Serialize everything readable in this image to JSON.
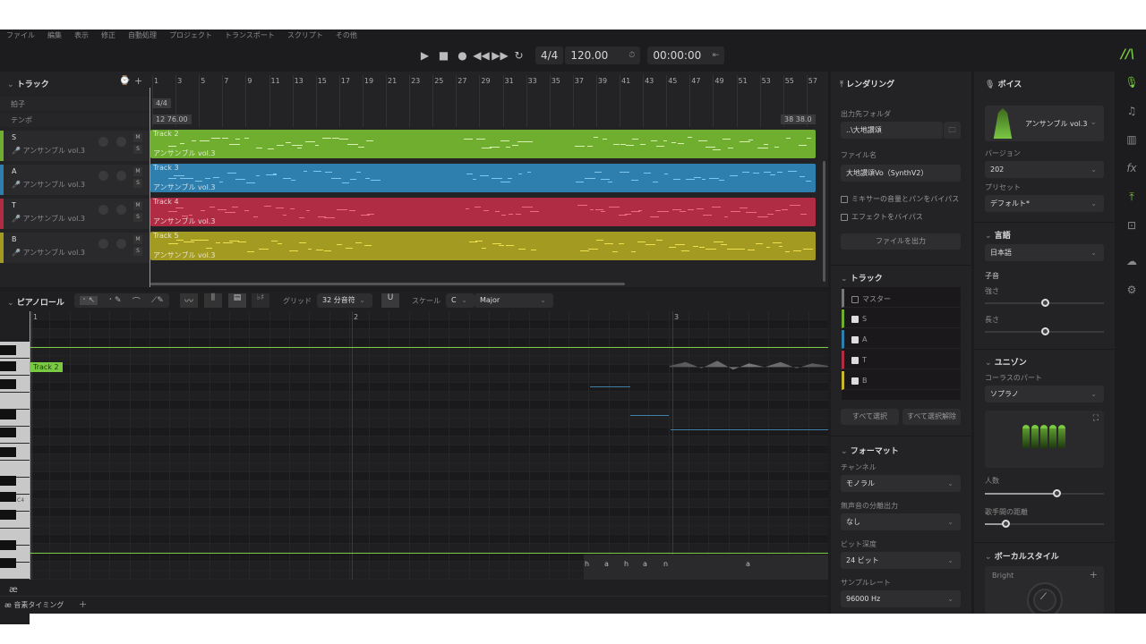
{
  "menu": [
    "ファイル",
    "編集",
    "表示",
    "修正",
    "自動処理",
    "プロジェクト",
    "トランスポート",
    "スクリプト",
    "その他"
  ],
  "transport": {
    "time_signature": "4/4",
    "tempo": "120.00",
    "time": "00:00:00"
  },
  "tracks_panel": {
    "title": "トラック",
    "meter_label": "拍子",
    "tempo_label": "テンポ",
    "meter_value": "4/4",
    "tempo_marker_bar": "12",
    "tempo_marker_value": "76.00",
    "tempo_marker2_bar": "38",
    "tempo_marker2_value": "38.0",
    "ruler": [
      "1",
      "3",
      "5",
      "7",
      "9",
      "11",
      "13",
      "15",
      "17",
      "19",
      "21",
      "23",
      "25",
      "27",
      "29",
      "31",
      "33",
      "35",
      "37",
      "39",
      "41",
      "43",
      "45",
      "47",
      "49",
      "51",
      "53",
      "55",
      "57"
    ],
    "tracks": [
      {
        "name": "S",
        "voice": "アンサンブル vol.3",
        "clip": "Track 2",
        "color": "#6fae2e"
      },
      {
        "name": "A",
        "voice": "アンサンブル vol.3",
        "clip": "Track 3",
        "color": "#2f7fae"
      },
      {
        "name": "T",
        "voice": "アンサンブル vol.3",
        "clip": "Track 4",
        "color": "#b02c44"
      },
      {
        "name": "B",
        "voice": "アンサンブル vol.3",
        "clip": "Track 5",
        "color": "#a39a22"
      }
    ]
  },
  "piano_roll": {
    "title": "ピアノロール",
    "grid_label": "グリッド",
    "grid_value": "32 分音符",
    "scale_label": "スケール",
    "scale_key": "C",
    "scale_mode": "Major",
    "ruler": [
      "1",
      "2",
      "3"
    ],
    "clip_tag": "Track 2",
    "c4_label": "C4",
    "phonemes": [
      "h",
      "a",
      "h",
      "a",
      "n",
      "a"
    ],
    "lane_tab": "音素タイミング"
  },
  "render": {
    "title": "レンダリング",
    "folder_label": "出力先フォルダ",
    "folder_value": "..\\大地讃頌",
    "filename_label": "ファイル名",
    "filename_value": "大地讃頌Vo（SynthV2）",
    "bypass_mixer": "ミキサーの音量とパンをバイパス",
    "bypass_fx": "エフェクトをバイパス",
    "export_button": "ファイルを出力",
    "track_section": "トラック",
    "track_list": [
      {
        "name": "マスター",
        "checked": false,
        "color": "#777777"
      },
      {
        "name": "S",
        "checked": true,
        "color": "#6fae2e"
      },
      {
        "name": "A",
        "checked": true,
        "color": "#2f7fae"
      },
      {
        "name": "T",
        "checked": true,
        "color": "#b02c44"
      },
      {
        "name": "B",
        "checked": true,
        "color": "#c9b82a"
      }
    ],
    "select_all": "すべて選択",
    "deselect_all": "すべて選択解除",
    "format_section": "フォーマット",
    "channel_label": "チャンネル",
    "channel_value": "モノラル",
    "silence_label": "無声音の分離出力",
    "silence_value": "なし",
    "bitdepth_label": "ビット深度",
    "bitdepth_value": "24 ビット",
    "samplerate_label": "サンプルレート",
    "samplerate_value": "96000 Hz"
  },
  "voice": {
    "title": "ボイス",
    "voice_name": "アンサンブル vol.3",
    "version_label": "バージョン",
    "version_value": "202",
    "preset_label": "プリセット",
    "preset_value": "デフォルト*",
    "language_section": "言語",
    "language_value": "日本語",
    "consonant_label": "子音",
    "strength_label": "強さ",
    "strength": 0.5,
    "length_label": "長さ",
    "length": 0.5,
    "unison_section": "ユニゾン",
    "chorus_part_label": "コーラスのパート",
    "chorus_part_value": "ソプラノ",
    "count_label": "人数",
    "count": 0.6,
    "distance_label": "歌手間の距離",
    "distance": 0.17,
    "vocal_style_section": "ボーカルスタイル",
    "style_name": "Bright"
  },
  "accent_color": "#7ac943"
}
